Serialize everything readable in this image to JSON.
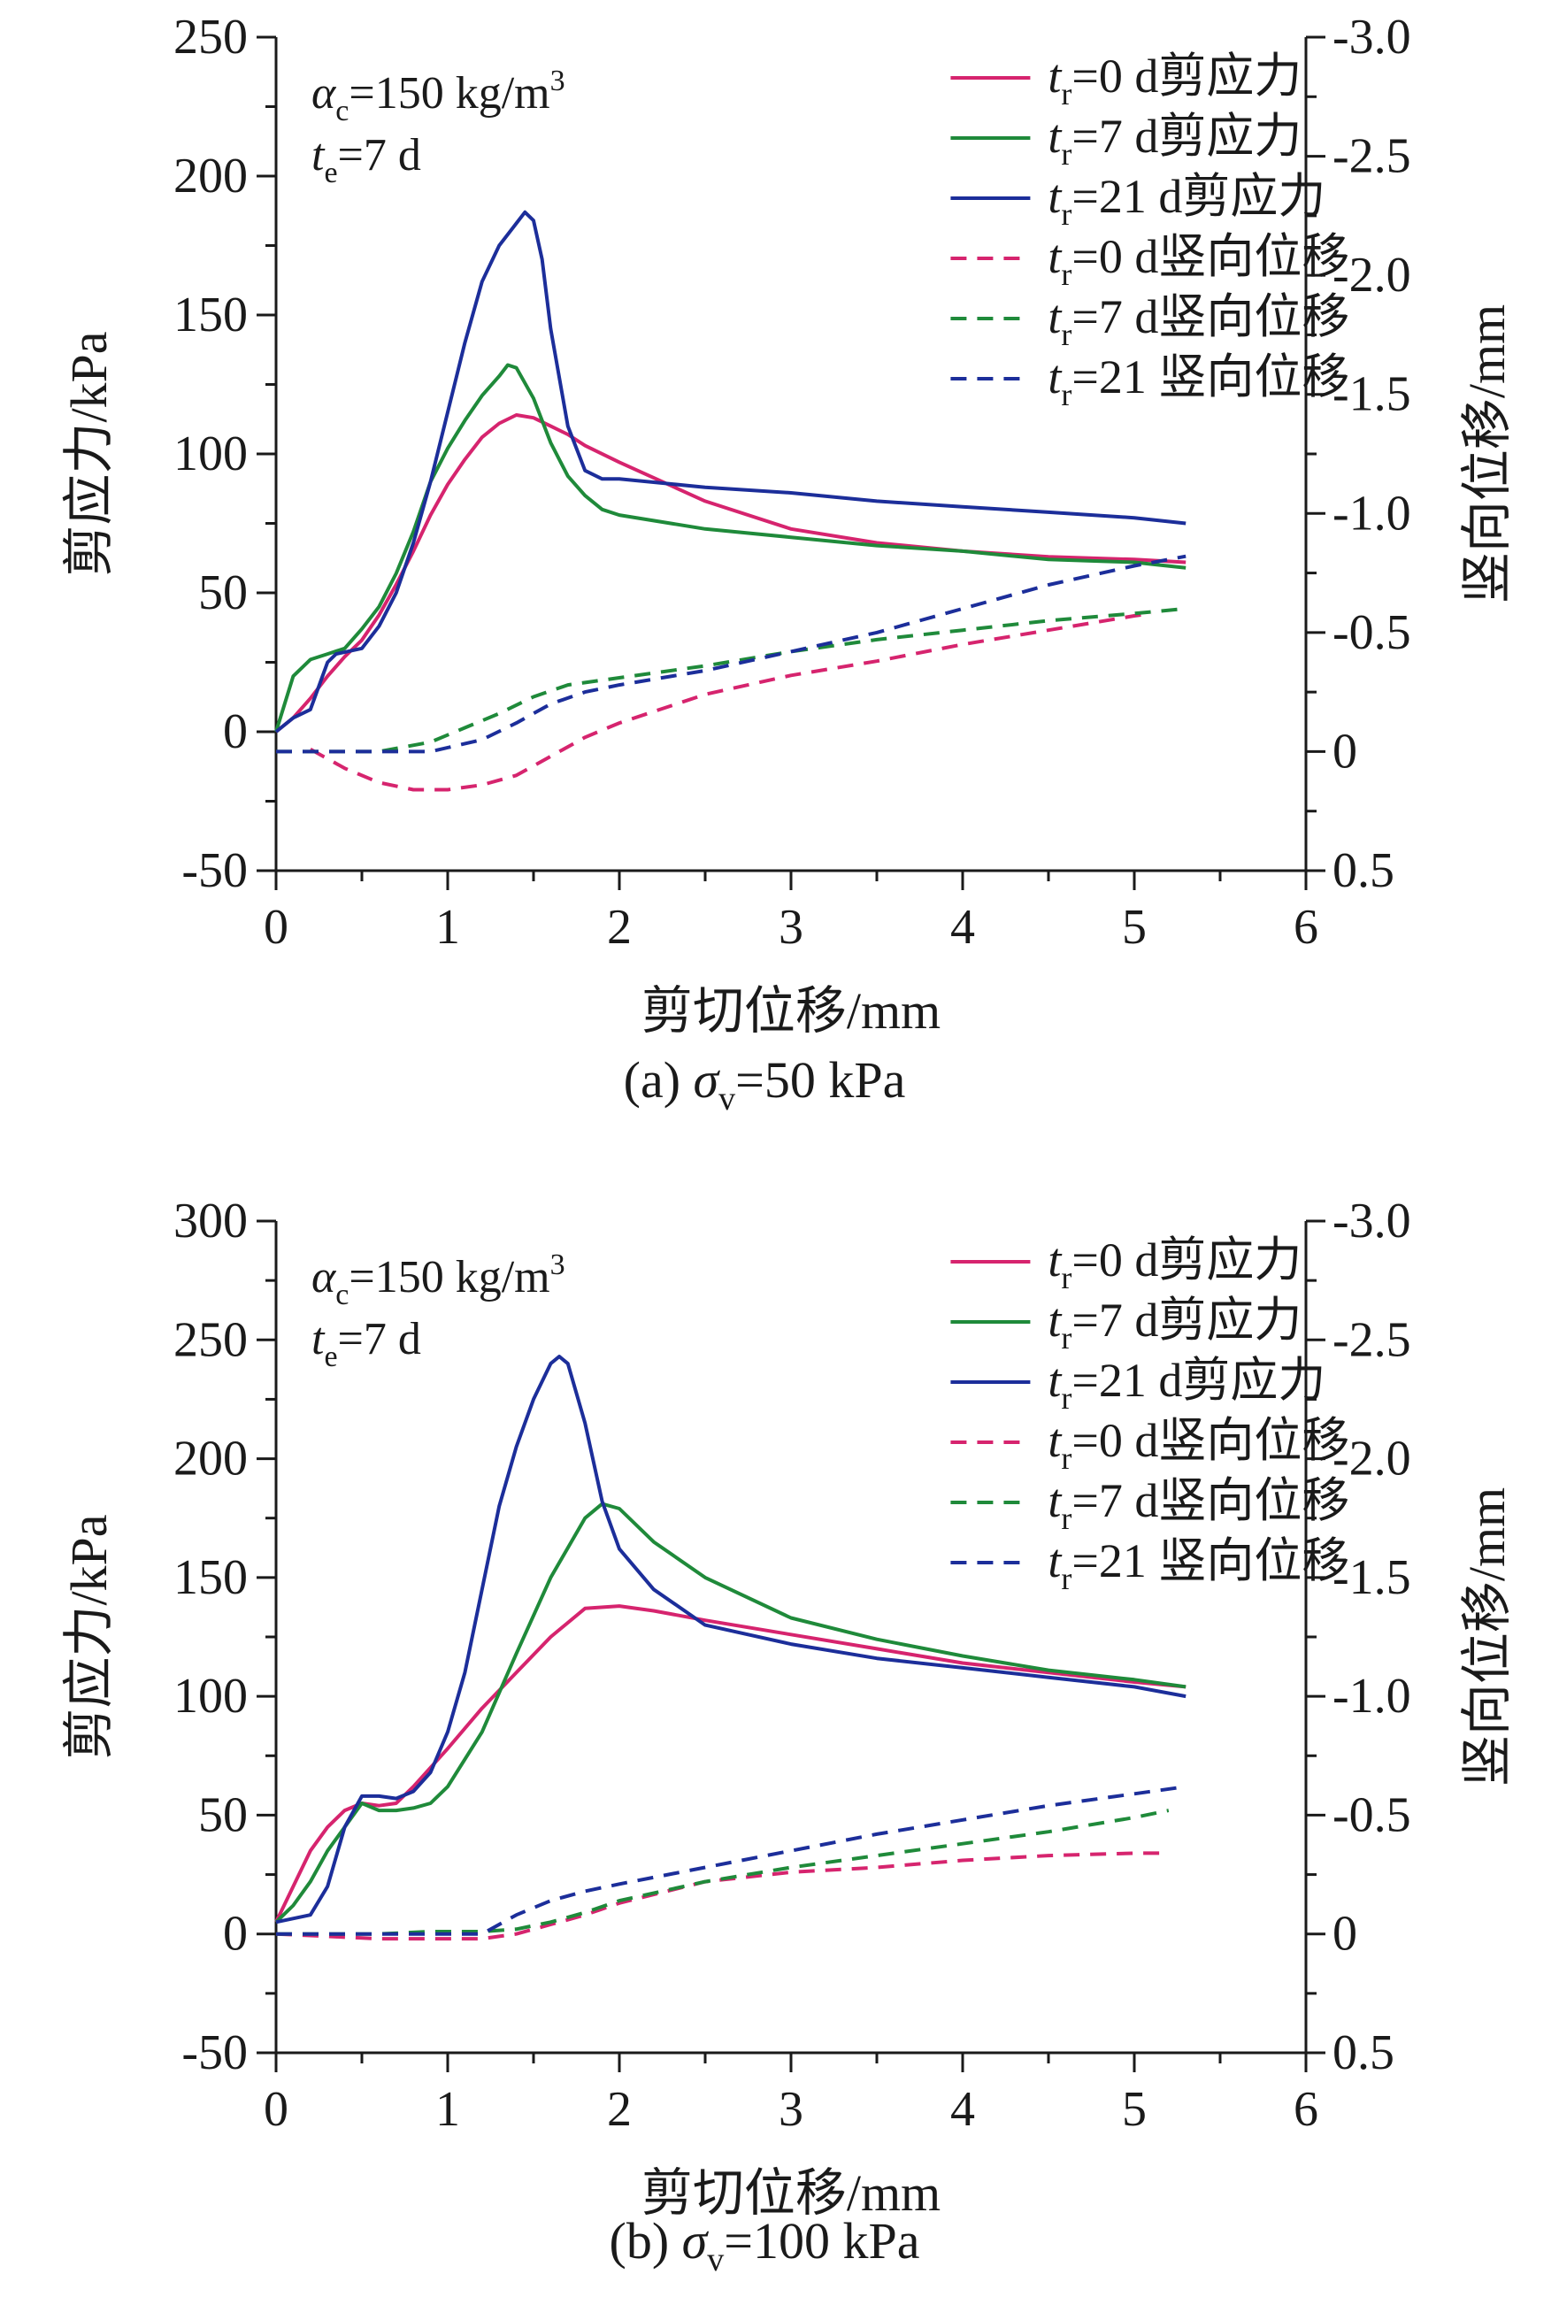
{
  "colors": {
    "t0": "#d6246e",
    "t7": "#1f8a3a",
    "t21": "#1c2e9a",
    "axis": "#1a1a1a"
  },
  "chart_data": [
    {
      "type": "line",
      "caption": {
        "prefix": "(a) ",
        "sym": "σ",
        "sub": "v",
        "rest": "=50 kPa"
      },
      "xlabel": "剪切位移/mm",
      "ylabel": "剪应力/kPa",
      "y2label": "竖向位移/mm",
      "xlim": [
        0,
        6
      ],
      "ylim": [
        -50,
        250
      ],
      "y2lim": [
        0.5,
        -3.0
      ],
      "xticks": [
        "0",
        "1",
        "2",
        "3",
        "4",
        "5",
        "6"
      ],
      "yticks": [
        "-50",
        "0",
        "50",
        "100",
        "150",
        "200",
        "250"
      ],
      "y2ticks": [
        "0.5",
        "0",
        "-0.5",
        "-1.0",
        "-1.5",
        "-2.0",
        "-2.5",
        "-3.0"
      ],
      "annotation": {
        "line1": {
          "sym": "α",
          "sub": "c",
          "rest": "=150 kg/m",
          "sup": "3"
        },
        "line2": {
          "sym": "t",
          "sub": "e",
          "rest": "=7 d"
        }
      },
      "series": [
        {
          "name_sym": "t",
          "name_sub": "r",
          "name_rest": "=0 d剪应力",
          "axis": "left",
          "style": "solid",
          "color_key": "t0",
          "x": [
            0,
            0.1,
            0.2,
            0.3,
            0.4,
            0.5,
            0.6,
            0.7,
            0.8,
            0.9,
            1.0,
            1.1,
            1.2,
            1.3,
            1.4,
            1.5,
            1.6,
            1.7,
            1.8,
            2.0,
            2.5,
            3.0,
            3.5,
            4.0,
            4.5,
            5.0,
            5.3
          ],
          "y": [
            0,
            5,
            12,
            20,
            27,
            33,
            42,
            53,
            65,
            78,
            89,
            98,
            106,
            111,
            114,
            113,
            110,
            107,
            103,
            97,
            83,
            73,
            68,
            65,
            63,
            62,
            61
          ]
        },
        {
          "name_sym": "t",
          "name_sub": "r",
          "name_rest": "=7 d剪应力",
          "axis": "left",
          "style": "solid",
          "color_key": "t7",
          "x": [
            0,
            0.1,
            0.2,
            0.3,
            0.4,
            0.5,
            0.6,
            0.7,
            0.8,
            0.9,
            1.0,
            1.1,
            1.2,
            1.3,
            1.35,
            1.4,
            1.5,
            1.6,
            1.7,
            1.8,
            1.9,
            2.0,
            2.5,
            3.0,
            3.5,
            4.0,
            4.5,
            5.0,
            5.3
          ],
          "y": [
            0,
            20,
            26,
            28,
            30,
            37,
            45,
            57,
            72,
            90,
            102,
            112,
            121,
            128,
            132,
            131,
            120,
            104,
            92,
            85,
            80,
            78,
            73,
            70,
            67,
            65,
            62,
            61,
            59
          ]
        },
        {
          "name_sym": "t",
          "name_sub": "r",
          "name_rest": "=21 d剪应力",
          "axis": "left",
          "style": "solid",
          "color_key": "t21",
          "x": [
            0,
            0.1,
            0.2,
            0.3,
            0.35,
            0.5,
            0.6,
            0.7,
            0.8,
            0.9,
            1.0,
            1.1,
            1.2,
            1.3,
            1.4,
            1.45,
            1.5,
            1.55,
            1.6,
            1.7,
            1.8,
            1.9,
            2.0,
            2.5,
            3.0,
            3.5,
            4.0,
            4.5,
            5.0,
            5.3
          ],
          "y": [
            0,
            5,
            8,
            25,
            28,
            30,
            38,
            50,
            68,
            90,
            115,
            140,
            162,
            175,
            183,
            187,
            184,
            170,
            145,
            110,
            94,
            91,
            91,
            88,
            86,
            83,
            81,
            79,
            77,
            75
          ]
        },
        {
          "name_sym": "t",
          "name_sub": "r",
          "name_rest": "=0 d竖向位移",
          "axis": "right",
          "style": "dashed",
          "color_key": "t0",
          "x": [
            0.2,
            0.4,
            0.6,
            0.8,
            1.0,
            1.2,
            1.4,
            1.6,
            1.8,
            2.0,
            2.5,
            3.0,
            3.5,
            4.0,
            4.5,
            5.0,
            5.1
          ],
          "y": [
            -0.01,
            0.07,
            0.13,
            0.16,
            0.16,
            0.14,
            0.1,
            0.02,
            -0.06,
            -0.12,
            -0.24,
            -0.32,
            -0.38,
            -0.45,
            -0.51,
            -0.57,
            -0.58
          ]
        },
        {
          "name_sym": "t",
          "name_sub": "r",
          "name_rest": "=7 d竖向位移",
          "axis": "right",
          "style": "dashed",
          "color_key": "t7",
          "x": [
            0,
            0.3,
            0.6,
            0.9,
            1.1,
            1.3,
            1.5,
            1.7,
            2.0,
            2.5,
            3.0,
            3.5,
            4.0,
            4.5,
            5.0,
            5.3
          ],
          "y": [
            0,
            0,
            0,
            -0.04,
            -0.1,
            -0.16,
            -0.23,
            -0.28,
            -0.31,
            -0.36,
            -0.42,
            -0.47,
            -0.51,
            -0.55,
            -0.58,
            -0.6
          ]
        },
        {
          "name_sym": "t",
          "name_sub": "r",
          "name_rest": "=21 竖向位移",
          "axis": "right",
          "style": "dashed",
          "color_key": "t21",
          "x": [
            0,
            0.3,
            0.6,
            0.9,
            1.2,
            1.4,
            1.6,
            1.8,
            2.0,
            2.5,
            3.0,
            3.5,
            4.0,
            4.5,
            5.0,
            5.3
          ],
          "y": [
            0,
            0,
            0,
            0,
            -0.05,
            -0.12,
            -0.2,
            -0.25,
            -0.28,
            -0.34,
            -0.42,
            -0.5,
            -0.6,
            -0.7,
            -0.78,
            -0.82
          ]
        }
      ]
    },
    {
      "type": "line",
      "caption": {
        "prefix": "(b) ",
        "sym": "σ",
        "sub": "v",
        "rest": "=100 kPa"
      },
      "xlabel": "剪切位移/mm",
      "ylabel": "剪应力/kPa",
      "y2label": "竖向位移/mm",
      "xlim": [
        0,
        6
      ],
      "ylim": [
        -50,
        300
      ],
      "y2lim": [
        0.5,
        -3.0
      ],
      "xticks": [
        "0",
        "1",
        "2",
        "3",
        "4",
        "5",
        "6"
      ],
      "yticks": [
        "-50",
        "0",
        "50",
        "100",
        "150",
        "200",
        "250",
        "300"
      ],
      "y2ticks": [
        "0.5",
        "0",
        "-0.5",
        "-1.0",
        "-1.5",
        "-2.0",
        "-2.5",
        "-3.0"
      ],
      "annotation": {
        "line1": {
          "sym": "α",
          "sub": "c",
          "rest": "=150 kg/m",
          "sup": "3"
        },
        "line2": {
          "sym": "t",
          "sub": "e",
          "rest": "=7 d"
        }
      },
      "series": [
        {
          "name_sym": "t",
          "name_sub": "r",
          "name_rest": "=0 d剪应力",
          "axis": "left",
          "style": "solid",
          "color_key": "t0",
          "x": [
            0,
            0.1,
            0.2,
            0.3,
            0.4,
            0.5,
            0.6,
            0.7,
            0.8,
            0.9,
            1.0,
            1.2,
            1.4,
            1.6,
            1.8,
            2.0,
            2.2,
            2.5,
            3.0,
            3.5,
            4.0,
            4.5,
            5.0,
            5.3
          ],
          "y": [
            5,
            20,
            35,
            45,
            52,
            55,
            54,
            55,
            62,
            70,
            78,
            95,
            110,
            125,
            137,
            138,
            136,
            132,
            126,
            120,
            114,
            110,
            106,
            104
          ]
        },
        {
          "name_sym": "t",
          "name_sub": "r",
          "name_rest": "=7 d剪应力",
          "axis": "left",
          "style": "solid",
          "color_key": "t7",
          "x": [
            0,
            0.1,
            0.2,
            0.3,
            0.4,
            0.5,
            0.6,
            0.7,
            0.8,
            0.9,
            1.0,
            1.2,
            1.4,
            1.6,
            1.8,
            1.9,
            2.0,
            2.2,
            2.5,
            3.0,
            3.5,
            4.0,
            4.5,
            5.0,
            5.3
          ],
          "y": [
            5,
            12,
            22,
            35,
            45,
            55,
            52,
            52,
            53,
            55,
            62,
            85,
            118,
            150,
            175,
            181,
            179,
            165,
            150,
            133,
            124,
            117,
            111,
            107,
            104
          ]
        },
        {
          "name_sym": "t",
          "name_sub": "r",
          "name_rest": "=21 d剪应力",
          "axis": "left",
          "style": "solid",
          "color_key": "t21",
          "x": [
            0,
            0.2,
            0.3,
            0.4,
            0.5,
            0.6,
            0.7,
            0.8,
            0.9,
            1.0,
            1.1,
            1.2,
            1.3,
            1.4,
            1.5,
            1.6,
            1.65,
            1.7,
            1.8,
            1.9,
            2.0,
            2.2,
            2.5,
            3.0,
            3.5,
            4.0,
            4.5,
            5.0,
            5.3
          ],
          "y": [
            5,
            8,
            20,
            45,
            58,
            58,
            57,
            60,
            68,
            85,
            110,
            145,
            180,
            205,
            225,
            240,
            243,
            240,
            215,
            182,
            162,
            145,
            130,
            122,
            116,
            112,
            108,
            104,
            100
          ]
        },
        {
          "name_sym": "t",
          "name_sub": "r",
          "name_rest": "=0 d竖向位移",
          "axis": "right",
          "style": "dashed",
          "color_key": "t0",
          "x": [
            0,
            0.3,
            0.6,
            0.9,
            1.2,
            1.4,
            1.6,
            1.8,
            2.0,
            2.5,
            3.0,
            3.5,
            4.0,
            4.5,
            5.0,
            5.2
          ],
          "y": [
            0,
            0.01,
            0.02,
            0.02,
            0.02,
            0,
            -0.04,
            -0.08,
            -0.13,
            -0.22,
            -0.26,
            -0.28,
            -0.31,
            -0.33,
            -0.34,
            -0.34
          ]
        },
        {
          "name_sym": "t",
          "name_sub": "r",
          "name_rest": "=7 d竖向位移",
          "axis": "right",
          "style": "dashed",
          "color_key": "t7",
          "x": [
            0,
            0.3,
            0.6,
            0.9,
            1.2,
            1.4,
            1.6,
            1.8,
            2.0,
            2.5,
            3.0,
            3.5,
            4.0,
            4.5,
            5.0,
            5.2
          ],
          "y": [
            0,
            0,
            0,
            -0.01,
            -0.01,
            -0.02,
            -0.05,
            -0.09,
            -0.14,
            -0.22,
            -0.28,
            -0.33,
            -0.38,
            -0.43,
            -0.49,
            -0.52
          ]
        },
        {
          "name_sym": "t",
          "name_sub": "r",
          "name_rest": "=21 竖向位移",
          "axis": "right",
          "style": "dashed",
          "color_key": "t21",
          "x": [
            0,
            0.3,
            0.6,
            0.9,
            1.2,
            1.4,
            1.6,
            1.8,
            2.0,
            2.5,
            3.0,
            3.5,
            4.0,
            4.5,
            5.0,
            5.3
          ],
          "y": [
            0,
            0,
            0,
            0,
            0,
            -0.08,
            -0.14,
            -0.18,
            -0.21,
            -0.28,
            -0.35,
            -0.42,
            -0.48,
            -0.54,
            -0.59,
            -0.62
          ]
        }
      ]
    }
  ]
}
